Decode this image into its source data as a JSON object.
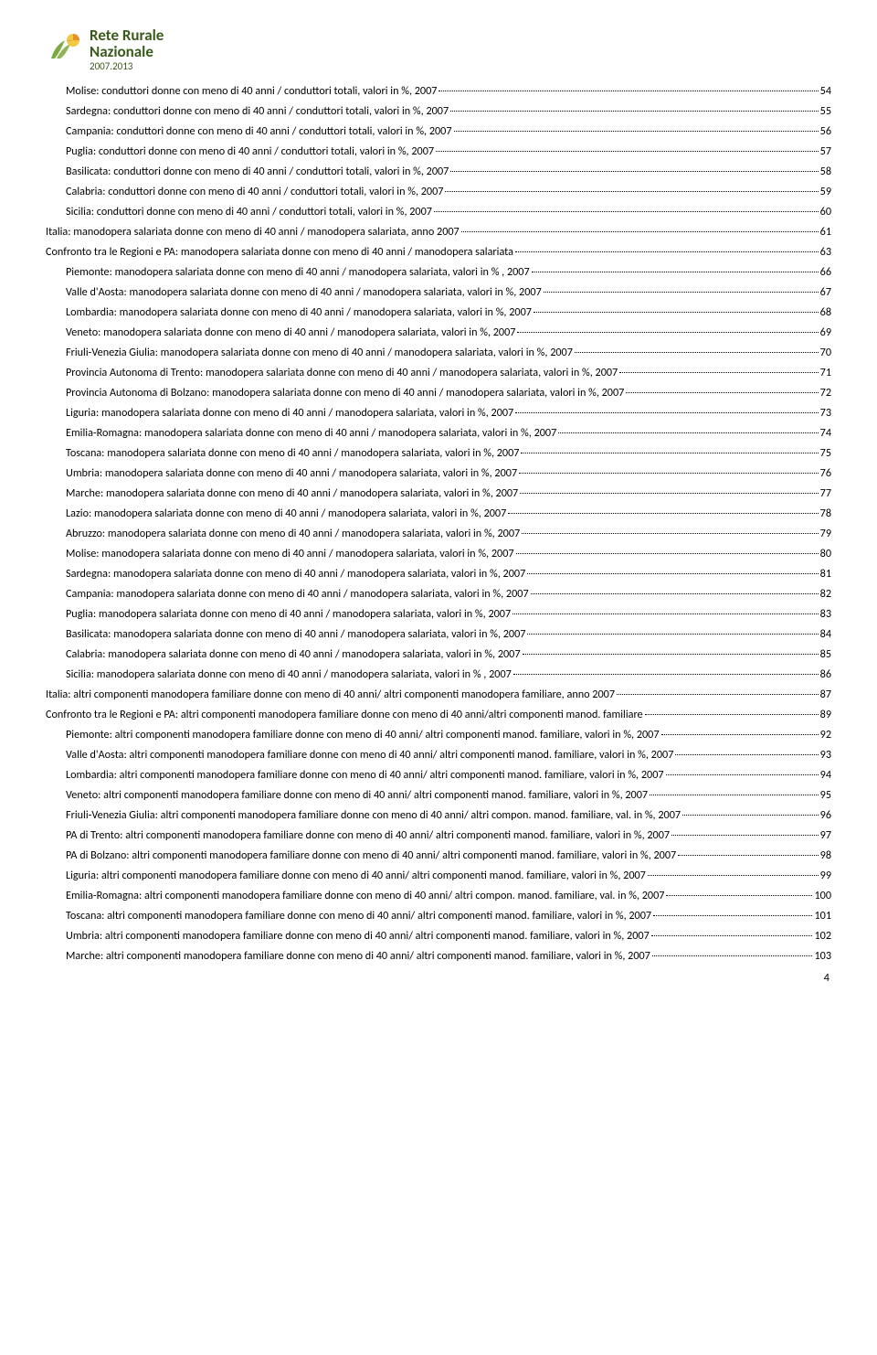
{
  "logo": {
    "line1": "Rete Rurale",
    "line2": "Nazionale",
    "line3": "2007.2013",
    "icon_colors": {
      "leaf_green": "#7da843",
      "sun_orange": "#e6902c",
      "sun_yellow": "#f2c744"
    }
  },
  "page_number": "4",
  "toc": [
    {
      "indent": true,
      "title": "Molise: conduttori donne con meno di 40 anni / conduttori totali, valori in %, 2007",
      "page": "54"
    },
    {
      "indent": true,
      "title": "Sardegna: conduttori donne con meno di 40 anni / conduttori totali,  valori in %, 2007",
      "page": "55"
    },
    {
      "indent": true,
      "title": "Campania: conduttori donne con meno di 40 anni / conduttori totali, valori in %, 2007",
      "page": "56"
    },
    {
      "indent": true,
      "title": "Puglia: conduttori donne con meno di 40 anni / conduttori totali, valori in %, 2007",
      "page": "57"
    },
    {
      "indent": true,
      "title": "Basilicata: conduttori donne con meno di 40 anni / conduttori totali,  valori in %, 2007",
      "page": "58"
    },
    {
      "indent": true,
      "title": "Calabria: conduttori donne con meno di 40 anni / conduttori totali, valori in %, 2007",
      "page": "59"
    },
    {
      "indent": true,
      "title": "Sicilia: conduttori donne con meno di 40 anni / conduttori totali, valori in %, 2007",
      "page": "60"
    },
    {
      "indent": false,
      "title": "Italia: manodopera salariata donne con meno di 40 anni / manodopera salariata, anno 2007",
      "page": "61"
    },
    {
      "indent": false,
      "title": "Confronto tra le Regioni e PA: manodopera salariata donne con meno di 40 anni / manodopera salariata",
      "page": "63"
    },
    {
      "indent": true,
      "title": "Piemonte: manodopera salariata donne con meno di 40 anni / manodopera salariata, valori in % , 2007",
      "page": "66"
    },
    {
      "indent": true,
      "title": "Valle d'Aosta: manodopera salariata donne con meno di 40 anni / manodopera salariata, valori in %, 2007",
      "page": "67"
    },
    {
      "indent": true,
      "title": "Lombardia: manodopera salariata donne con meno di 40 anni / manodopera salariata,  valori in %,  2007",
      "page": "68"
    },
    {
      "indent": true,
      "title": "Veneto: manodopera salariata donne con meno di 40 anni / manodopera salariata, valori in %, 2007",
      "page": "69"
    },
    {
      "indent": true,
      "title": "Friuli-Venezia Giulia: manodopera salariata donne con meno di 40 anni / manodopera salariata,  valori in %, 2007",
      "page": "70"
    },
    {
      "indent": true,
      "title": "Provincia Autonoma di Trento: manodopera salariata donne con meno di 40 anni / manodopera salariata, valori in %, 2007",
      "page": "71"
    },
    {
      "indent": true,
      "title": "Provincia Autonoma di Bolzano: manodopera salariata donne con meno di 40 anni / manodopera salariata, valori in %, 2007",
      "page": "72"
    },
    {
      "indent": true,
      "title": "Liguria:  manodopera salariata donne con meno di 40 anni / manodopera salariata, valori in %, 2007",
      "page": "73"
    },
    {
      "indent": true,
      "title": "Emilia-Romagna: manodopera salariata donne con meno di 40 anni / manodopera salariata,  valori in %, 2007",
      "page": "74"
    },
    {
      "indent": true,
      "title": "Toscana: manodopera salariata donne con meno di 40 anni / manodopera salariata, valori in %, 2007",
      "page": "75"
    },
    {
      "indent": true,
      "title": "Umbria: manodopera salariata donne con meno di 40 anni / manodopera salariata, valori in %, 2007",
      "page": "76"
    },
    {
      "indent": true,
      "title": "Marche: manodopera salariata donne con meno di 40 anni / manodopera salariata, valori in %, 2007",
      "page": "77"
    },
    {
      "indent": true,
      "title": "Lazio: manodopera salariata donne con meno di 40 anni / manodopera salariata, valori in %, 2007",
      "page": "78"
    },
    {
      "indent": true,
      "title": "Abruzzo: manodopera salariata donne con meno di 40 anni / manodopera salariata, valori in %, 2007",
      "page": "79"
    },
    {
      "indent": true,
      "title": "Molise: manodopera salariata donne con meno di 40 anni / manodopera salariata, valori in %, 2007",
      "page": "80"
    },
    {
      "indent": true,
      "title": "Sardegna: manodopera salariata donne con meno di 40 anni / manodopera salariata,  valori in %, 2007",
      "page": "81"
    },
    {
      "indent": true,
      "title": "Campania: manodopera salariata donne con meno di 40 anni / manodopera salariata, valori in %, 2007",
      "page": "82"
    },
    {
      "indent": true,
      "title": "Puglia: manodopera salariata donne con meno di 40 anni / manodopera salariata, valori in %, 2007",
      "page": "83"
    },
    {
      "indent": true,
      "title": "Basilicata: manodopera salariata donne con meno di 40 anni / manodopera salariata,  valori in %, 2007",
      "page": "84"
    },
    {
      "indent": true,
      "title": "Calabria: manodopera salariata donne con meno di 40 anni / manodopera salariata, valori in %, 2007",
      "page": "85"
    },
    {
      "indent": true,
      "title": "Sicilia: manodopera salariata donne con meno di 40 anni / manodopera salariata, valori in % , 2007",
      "page": "86"
    },
    {
      "indent": false,
      "title": "Italia: altri componenti manodopera familiare  donne con meno di 40 anni/ altri componenti manodopera familiare, anno 2007",
      "page": "87"
    },
    {
      "indent": false,
      "title": "Confronto tra le Regioni e PA: altri componenti manodopera familiare  donne con meno di 40 anni/altri componenti manod. familiare",
      "page": "89"
    },
    {
      "indent": true,
      "title": "Piemonte: altri componenti manodopera familiare donne con meno di 40 anni/ altri componenti manod. familiare, valori in %,  2007",
      "page": "92"
    },
    {
      "indent": true,
      "title": "Valle d'Aosta: altri componenti manodopera familiare donne con meno di 40 anni/ altri componenti manod. familiare, valori in %, 2007",
      "page": "93"
    },
    {
      "indent": true,
      "title": "Lombardia: altri componenti manodopera familiare donne con meno di 40 anni/ altri componenti manod. familiare,  valori in %,  2007",
      "page": "94"
    },
    {
      "indent": true,
      "title": "Veneto: altri componenti manodopera familiare donne con meno di 40 anni/ altri componenti manod. familiare, valori in %,  2007",
      "page": "95"
    },
    {
      "indent": true,
      "title": "Friuli-Venezia Giulia: altri componenti manodopera familiare donne con meno di 40 anni/ altri compon. manod. familiare,  val. in %, 2007",
      "page": "96"
    },
    {
      "indent": true,
      "title": "PA di Trento: altri componenti manodopera familiare donne con meno di 40 anni/ altri componenti manod. familiare, valori in %, 2007",
      "page": "97"
    },
    {
      "indent": true,
      "title": "PA di Bolzano: altri componenti manodopera familiare donne con meno di 40 anni/ altri componenti manod. familiare, valori in %, 2007",
      "page": "98"
    },
    {
      "indent": true,
      "title": "Liguria:  altri componenti manodopera familiare donne con meno di 40 anni/ altri componenti manod. familiare, valori in %, 2007",
      "page": "99"
    },
    {
      "indent": true,
      "title": "Emilia-Romagna: altri componenti manodopera familiare donne con meno di 40 anni/ altri compon. manod. familiare,  val. in %, 2007",
      "page": "100"
    },
    {
      "indent": true,
      "title": "Toscana: altri componenti manodopera familiare donne con meno di 40 anni/ altri componenti manod. familiare, valori in %, 2007",
      "page": "101"
    },
    {
      "indent": true,
      "title": "Umbria: altri componenti manodopera familiare donne con meno di 40 anni/ altri componenti manod. familiare, valori in %, 2007",
      "page": "102"
    },
    {
      "indent": true,
      "title": "Marche: altri componenti manodopera familiare donne con meno di 40 anni/ altri componenti manod. familiare, valori in %, 2007",
      "page": "103"
    }
  ]
}
